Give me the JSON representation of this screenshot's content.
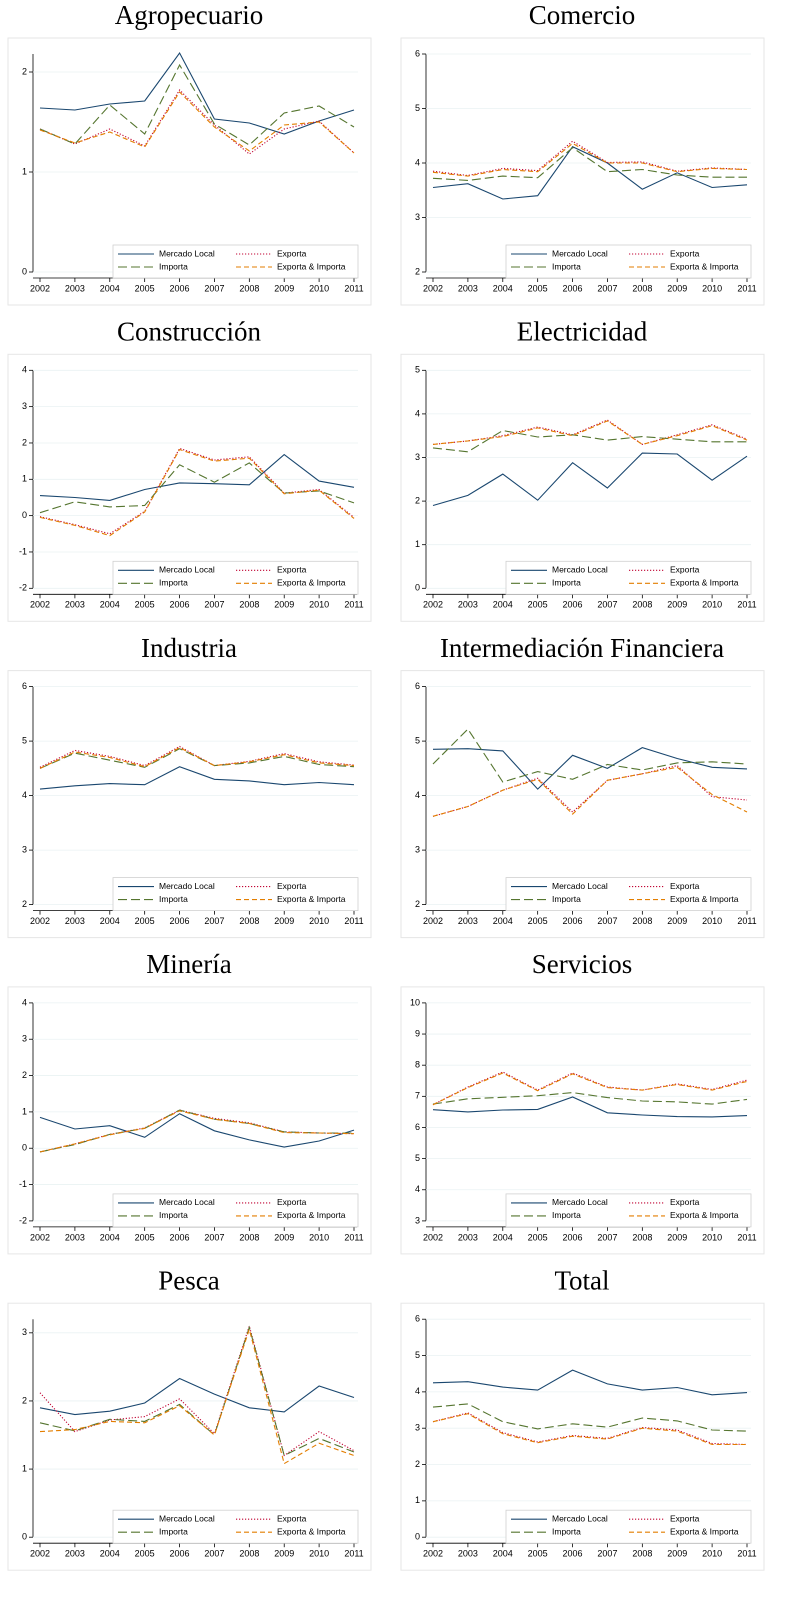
{
  "chart_data": [
    {
      "type": "line",
      "title": "Agropecuario",
      "categories": [
        2002,
        2003,
        2004,
        2005,
        2006,
        2007,
        2008,
        2009,
        2010,
        2011
      ],
      "ylim": [
        0,
        2.18
      ],
      "yticks": [
        0,
        1,
        2
      ],
      "grid": true,
      "series": [
        {
          "name": "Mercado Local",
          "color": "#1a476f",
          "style": "solid",
          "values": [
            1.64,
            1.62,
            1.68,
            1.71,
            2.19,
            1.53,
            1.49,
            1.38,
            1.51,
            1.62
          ]
        },
        {
          "name": "Exporta",
          "color": "#c10534",
          "style": "dot",
          "values": [
            1.43,
            1.28,
            1.43,
            1.26,
            1.82,
            1.47,
            1.18,
            1.43,
            1.51,
            1.19
          ]
        },
        {
          "name": "Importa",
          "color": "#55752f",
          "style": "longdash",
          "values": [
            1.43,
            1.28,
            1.67,
            1.38,
            2.07,
            1.48,
            1.27,
            1.59,
            1.66,
            1.45
          ]
        },
        {
          "name": "Exporta & Importa",
          "color": "#e37e00",
          "style": "dash",
          "values": [
            1.42,
            1.29,
            1.4,
            1.25,
            1.8,
            1.45,
            1.21,
            1.47,
            1.5,
            1.19
          ]
        }
      ]
    },
    {
      "type": "line",
      "title": "Comercio",
      "categories": [
        2002,
        2003,
        2004,
        2005,
        2006,
        2007,
        2008,
        2009,
        2010,
        2011
      ],
      "ylim": [
        2,
        6
      ],
      "yticks": [
        2,
        3,
        4,
        5,
        6
      ],
      "grid": true,
      "series": [
        {
          "name": "Mercado Local",
          "color": "#1a476f",
          "style": "solid",
          "values": [
            3.55,
            3.62,
            3.34,
            3.4,
            4.3,
            4.0,
            3.52,
            3.82,
            3.55,
            3.6
          ]
        },
        {
          "name": "Exporta",
          "color": "#c10534",
          "style": "dot",
          "values": [
            3.85,
            3.77,
            3.9,
            3.86,
            4.4,
            4.01,
            4.02,
            3.85,
            3.91,
            3.88
          ]
        },
        {
          "name": "Importa",
          "color": "#55752f",
          "style": "longdash",
          "values": [
            3.72,
            3.68,
            3.76,
            3.73,
            4.28,
            3.84,
            3.88,
            3.78,
            3.74,
            3.74
          ]
        },
        {
          "name": "Exporta & Importa",
          "color": "#e37e00",
          "style": "dash",
          "values": [
            3.83,
            3.76,
            3.88,
            3.84,
            4.36,
            4.0,
            4.0,
            3.84,
            3.9,
            3.88
          ]
        }
      ]
    },
    {
      "type": "line",
      "title": "Construcción",
      "categories": [
        2002,
        2003,
        2004,
        2005,
        2006,
        2007,
        2008,
        2009,
        2010,
        2011
      ],
      "ylim": [
        -2,
        4
      ],
      "yticks": [
        -2,
        -1,
        0,
        1,
        2,
        3,
        4
      ],
      "grid": true,
      "series": [
        {
          "name": "Mercado Local",
          "color": "#1a476f",
          "style": "solid",
          "values": [
            0.55,
            0.5,
            0.42,
            0.72,
            0.9,
            0.88,
            0.85,
            1.68,
            0.95,
            0.78
          ]
        },
        {
          "name": "Exporta",
          "color": "#c10534",
          "style": "dot",
          "values": [
            -0.03,
            -0.25,
            -0.5,
            0.12,
            1.85,
            1.53,
            1.62,
            0.62,
            0.72,
            -0.05
          ]
        },
        {
          "name": "Importa",
          "color": "#55752f",
          "style": "longdash",
          "values": [
            0.08,
            0.38,
            0.24,
            0.28,
            1.4,
            0.92,
            1.45,
            0.62,
            0.68,
            0.35
          ]
        },
        {
          "name": "Exporta & Importa",
          "color": "#e37e00",
          "style": "dash",
          "values": [
            -0.05,
            -0.27,
            -0.55,
            0.1,
            1.82,
            1.5,
            1.58,
            0.6,
            0.7,
            -0.08
          ]
        }
      ]
    },
    {
      "type": "line",
      "title": "Electricidad",
      "categories": [
        2002,
        2003,
        2004,
        2005,
        2006,
        2007,
        2008,
        2009,
        2010,
        2011
      ],
      "ylim": [
        0,
        5
      ],
      "yticks": [
        0,
        1,
        2,
        3,
        4,
        5
      ],
      "grid": true,
      "series": [
        {
          "name": "Mercado Local",
          "color": "#1a476f",
          "style": "solid",
          "values": [
            1.9,
            2.13,
            2.62,
            2.02,
            2.88,
            2.3,
            3.1,
            3.08,
            2.48,
            3.03
          ]
        },
        {
          "name": "Exporta",
          "color": "#c10534",
          "style": "dot",
          "values": [
            3.3,
            3.38,
            3.5,
            3.7,
            3.52,
            3.86,
            3.3,
            3.52,
            3.75,
            3.42
          ]
        },
        {
          "name": "Importa",
          "color": "#55752f",
          "style": "longdash",
          "values": [
            3.22,
            3.13,
            3.62,
            3.47,
            3.52,
            3.4,
            3.48,
            3.42,
            3.36,
            3.36
          ]
        },
        {
          "name": "Exporta & Importa",
          "color": "#e37e00",
          "style": "dash",
          "values": [
            3.3,
            3.38,
            3.48,
            3.68,
            3.5,
            3.84,
            3.3,
            3.5,
            3.73,
            3.4
          ]
        }
      ]
    },
    {
      "type": "line",
      "title": "Industria",
      "categories": [
        2002,
        2003,
        2004,
        2005,
        2006,
        2007,
        2008,
        2009,
        2010,
        2011
      ],
      "ylim": [
        2,
        6
      ],
      "yticks": [
        2,
        3,
        4,
        5,
        6
      ],
      "grid": true,
      "series": [
        {
          "name": "Mercado Local",
          "color": "#1a476f",
          "style": "solid",
          "values": [
            4.12,
            4.18,
            4.22,
            4.2,
            4.53,
            4.3,
            4.27,
            4.2,
            4.24,
            4.2
          ]
        },
        {
          "name": "Exporta",
          "color": "#c10534",
          "style": "dot",
          "values": [
            4.52,
            4.83,
            4.72,
            4.55,
            4.9,
            4.55,
            4.63,
            4.77,
            4.62,
            4.56
          ]
        },
        {
          "name": "Importa",
          "color": "#55752f",
          "style": "longdash",
          "values": [
            4.5,
            4.78,
            4.65,
            4.52,
            4.86,
            4.55,
            4.6,
            4.72,
            4.57,
            4.53
          ]
        },
        {
          "name": "Exporta & Importa",
          "color": "#e37e00",
          "style": "dash",
          "values": [
            4.5,
            4.8,
            4.7,
            4.53,
            4.88,
            4.55,
            4.62,
            4.75,
            4.6,
            4.55
          ]
        }
      ]
    },
    {
      "type": "line",
      "title": "Intermediación Financiera",
      "categories": [
        2002,
        2003,
        2004,
        2005,
        2006,
        2007,
        2008,
        2009,
        2010,
        2011
      ],
      "ylim": [
        2,
        6
      ],
      "yticks": [
        2,
        3,
        4,
        5,
        6
      ],
      "grid": true,
      "series": [
        {
          "name": "Mercado Local",
          "color": "#1a476f",
          "style": "solid",
          "values": [
            4.85,
            4.86,
            4.82,
            4.12,
            4.74,
            4.5,
            4.88,
            4.68,
            4.52,
            4.49
          ]
        },
        {
          "name": "Exporta",
          "color": "#c10534",
          "style": "dot",
          "values": [
            3.62,
            3.8,
            4.1,
            4.32,
            3.7,
            4.28,
            4.4,
            4.55,
            3.98,
            3.92
          ]
        },
        {
          "name": "Importa",
          "color": "#55752f",
          "style": "longdash",
          "values": [
            4.58,
            5.22,
            4.25,
            4.44,
            4.3,
            4.57,
            4.47,
            4.6,
            4.62,
            4.58
          ]
        },
        {
          "name": "Exporta & Importa",
          "color": "#e37e00",
          "style": "dash",
          "values": [
            3.62,
            3.8,
            4.1,
            4.3,
            3.66,
            4.28,
            4.4,
            4.52,
            4.02,
            3.7
          ]
        }
      ]
    },
    {
      "type": "line",
      "title": "Minería",
      "categories": [
        2002,
        2003,
        2004,
        2005,
        2006,
        2007,
        2008,
        2009,
        2010,
        2011
      ],
      "ylim": [
        -2,
        4
      ],
      "yticks": [
        -2,
        -1,
        0,
        1,
        2,
        3,
        4
      ],
      "grid": true,
      "series": [
        {
          "name": "Mercado Local",
          "color": "#1a476f",
          "style": "solid",
          "values": [
            0.85,
            0.53,
            0.62,
            0.3,
            0.95,
            0.48,
            0.23,
            0.03,
            0.2,
            0.5
          ]
        },
        {
          "name": "Exporta",
          "color": "#c10534",
          "style": "dot",
          "values": [
            -0.1,
            0.12,
            0.38,
            0.56,
            1.05,
            0.82,
            0.7,
            0.45,
            0.42,
            0.4
          ]
        },
        {
          "name": "Importa",
          "color": "#55752f",
          "style": "longdash",
          "values": [
            -0.1,
            0.1,
            0.38,
            0.55,
            1.05,
            0.8,
            0.68,
            0.45,
            0.42,
            0.42
          ]
        },
        {
          "name": "Exporta & Importa",
          "color": "#e37e00",
          "style": "dash",
          "values": [
            -0.1,
            0.12,
            0.37,
            0.55,
            1.03,
            0.8,
            0.68,
            0.43,
            0.42,
            0.4
          ]
        }
      ]
    },
    {
      "type": "line",
      "title": "Servicios",
      "categories": [
        2002,
        2003,
        2004,
        2005,
        2006,
        2007,
        2008,
        2009,
        2010,
        2011
      ],
      "ylim": [
        3,
        10
      ],
      "yticks": [
        3,
        4,
        5,
        6,
        7,
        8,
        9,
        10
      ],
      "grid": true,
      "series": [
        {
          "name": "Mercado Local",
          "color": "#1a476f",
          "style": "solid",
          "values": [
            6.57,
            6.5,
            6.56,
            6.58,
            6.98,
            6.47,
            6.4,
            6.35,
            6.34,
            6.38
          ]
        },
        {
          "name": "Exporta",
          "color": "#c10534",
          "style": "dot",
          "values": [
            6.73,
            7.3,
            7.78,
            7.2,
            7.75,
            7.3,
            7.2,
            7.4,
            7.22,
            7.52
          ]
        },
        {
          "name": "Importa",
          "color": "#55752f",
          "style": "longdash",
          "values": [
            6.75,
            6.92,
            6.97,
            7.02,
            7.12,
            6.96,
            6.85,
            6.82,
            6.75,
            6.9
          ]
        },
        {
          "name": "Exporta & Importa",
          "color": "#e37e00",
          "style": "dash",
          "values": [
            6.73,
            7.28,
            7.75,
            7.18,
            7.72,
            7.28,
            7.2,
            7.38,
            7.2,
            7.48
          ]
        }
      ]
    },
    {
      "type": "line",
      "title": "Pesca",
      "categories": [
        2002,
        2003,
        2004,
        2005,
        2006,
        2007,
        2008,
        2009,
        2010,
        2011
      ],
      "ylim": [
        0,
        3.2
      ],
      "yticks": [
        0,
        1,
        2,
        3
      ],
      "grid": true,
      "series": [
        {
          "name": "Mercado Local",
          "color": "#1a476f",
          "style": "solid",
          "values": [
            1.9,
            1.8,
            1.85,
            1.97,
            2.33,
            2.1,
            1.9,
            1.84,
            2.22,
            2.05
          ]
        },
        {
          "name": "Exporta",
          "color": "#c10534",
          "style": "dot",
          "values": [
            2.12,
            1.55,
            1.72,
            1.77,
            2.03,
            1.52,
            3.1,
            1.2,
            1.55,
            1.27
          ]
        },
        {
          "name": "Importa",
          "color": "#55752f",
          "style": "longdash",
          "values": [
            1.68,
            1.56,
            1.73,
            1.7,
            1.95,
            1.5,
            3.08,
            1.2,
            1.45,
            1.25
          ]
        },
        {
          "name": "Exporta & Importa",
          "color": "#e37e00",
          "style": "dash",
          "values": [
            1.55,
            1.58,
            1.7,
            1.68,
            1.93,
            1.5,
            3.05,
            1.08,
            1.38,
            1.2
          ]
        }
      ]
    },
    {
      "type": "line",
      "title": "Total",
      "categories": [
        2002,
        2003,
        2004,
        2005,
        2006,
        2007,
        2008,
        2009,
        2010,
        2011
      ],
      "ylim": [
        0,
        6
      ],
      "yticks": [
        0,
        1,
        2,
        3,
        4,
        5,
        6
      ],
      "grid": true,
      "series": [
        {
          "name": "Mercado Local",
          "color": "#1a476f",
          "style": "solid",
          "values": [
            4.25,
            4.28,
            4.13,
            4.05,
            4.6,
            4.22,
            4.05,
            4.12,
            3.92,
            3.98
          ]
        },
        {
          "name": "Exporta",
          "color": "#c10534",
          "style": "dot",
          "values": [
            3.18,
            3.42,
            2.88,
            2.62,
            2.8,
            2.72,
            3.02,
            2.95,
            2.58,
            2.55
          ]
        },
        {
          "name": "Importa",
          "color": "#55752f",
          "style": "longdash",
          "values": [
            3.58,
            3.67,
            3.18,
            2.98,
            3.12,
            3.03,
            3.28,
            3.2,
            2.95,
            2.92
          ]
        },
        {
          "name": "Exporta & Importa",
          "color": "#e37e00",
          "style": "dash",
          "values": [
            3.18,
            3.4,
            2.85,
            2.6,
            2.78,
            2.7,
            3.0,
            2.92,
            2.55,
            2.55
          ]
        }
      ]
    }
  ]
}
